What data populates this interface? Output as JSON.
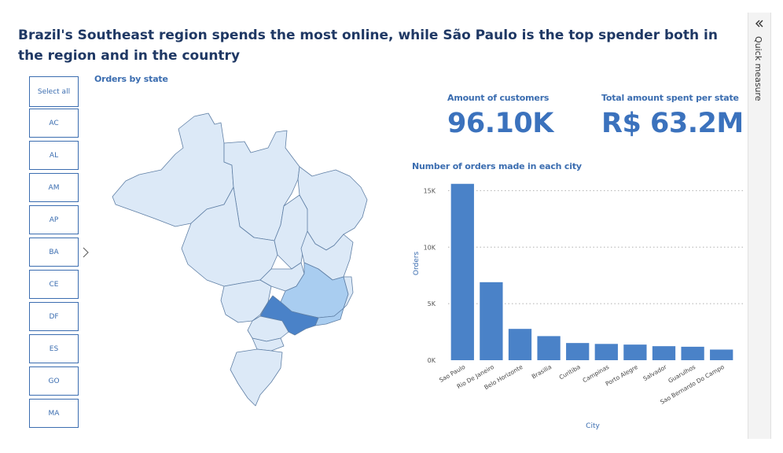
{
  "headline": "Brazil's Southeast region spends the most online, while São Paulo is the top spender both in the region and in the country",
  "slicer": {
    "items": [
      "Select all",
      "AC",
      "AL",
      "AM",
      "AP",
      "BA",
      "CE",
      "DF",
      "ES",
      "GO",
      "MA"
    ]
  },
  "map": {
    "title": "Orders by state",
    "colors": {
      "base": "#dce9f7",
      "mid": "#a9cdf0",
      "high": "#4a82c8",
      "border": "#5f7fa5"
    }
  },
  "kpis": {
    "customers_label": "Amount of customers",
    "customers_value": "96.10K",
    "spent_label": "Total amount spent per state",
    "spent_value": "R$ 63.2M"
  },
  "side_pane": {
    "label": "Quick measure"
  },
  "chart_data": {
    "type": "bar",
    "title": "Number of orders made in each city",
    "xlabel": "City",
    "ylabel": "Orders",
    "ylim": [
      0,
      16000
    ],
    "yticks": [
      0,
      5000,
      10000,
      15000
    ],
    "ytick_labels": [
      "0K",
      "5K",
      "10K",
      "15K"
    ],
    "grid": true,
    "bar_color": "#4a82c8",
    "categories": [
      "Sao Paulo",
      "Rio De Janeiro",
      "Belo Horizonte",
      "Brasilia",
      "Curitiba",
      "Campinas",
      "Porto Alegre",
      "Salvador",
      "Guarulhos",
      "Sao Bernardo Do Campo"
    ],
    "values": [
      15600,
      6900,
      2770,
      2130,
      1520,
      1440,
      1380,
      1240,
      1190,
      940
    ]
  }
}
